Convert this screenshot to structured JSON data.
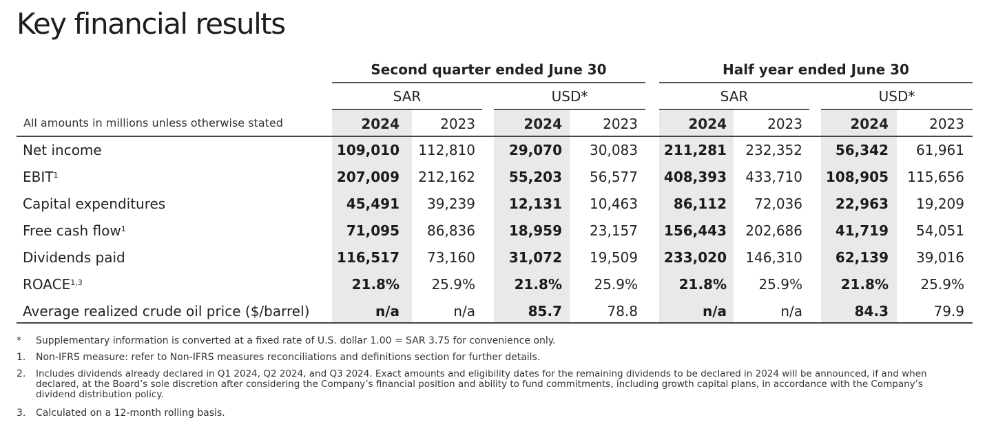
{
  "title": "Key financial results",
  "groups": [
    {
      "label": "Second quarter ended June 30"
    },
    {
      "label": "Half year ended June 30"
    }
  ],
  "currencies": [
    "SAR",
    "USD*",
    "SAR",
    "USD*"
  ],
  "years": [
    "2024",
    "2023",
    "2024",
    "2023",
    "2024",
    "2023",
    "2024",
    "2023"
  ],
  "note": "All amounts in millions unless otherwise stated",
  "rows": [
    {
      "label": "Net income",
      "sup": "",
      "values": [
        "109,010",
        "112,810",
        "29,070",
        "30,083",
        "211,281",
        "232,352",
        "56,342",
        "61,961"
      ]
    },
    {
      "label": "EBIT",
      "sup": "1",
      "values": [
        "207,009",
        "212,162",
        "55,203",
        "56,577",
        "408,393",
        "433,710",
        "108,905",
        "115,656"
      ]
    },
    {
      "label": "Capital expenditures",
      "sup": "",
      "values": [
        "45,491",
        "39,239",
        "12,131",
        "10,463",
        "86,112",
        "72,036",
        "22,963",
        "19,209"
      ]
    },
    {
      "label": "Free cash flow",
      "sup": "1",
      "values": [
        "71,095",
        "86,836",
        "18,959",
        "23,157",
        "156,443",
        "202,686",
        "41,719",
        "54,051"
      ]
    },
    {
      "label": "Dividends paid",
      "sup": "",
      "values": [
        "116,517",
        "73,160",
        "31,072",
        "19,509",
        "233,020",
        "146,310",
        "62,139",
        "39,016"
      ]
    },
    {
      "label": "ROACE",
      "sup": "1,3",
      "values": [
        "21.8%",
        "25.9%",
        "21.8%",
        "25.9%",
        "21.8%",
        "25.9%",
        "21.8%",
        "25.9%"
      ]
    },
    {
      "label": "Average realized crude oil price ($/barrel)",
      "sup": "",
      "values": [
        "n/a",
        "n/a",
        "85.7",
        "78.8",
        "n/a",
        "n/a",
        "84.3",
        "79.9"
      ]
    }
  ],
  "footnotes": [
    {
      "mark": "*",
      "text": "Supplementary information is converted at a fixed rate of U.S. dollar 1.00 = SAR 3.75 for convenience only."
    },
    {
      "mark": "1.",
      "text": "Non-IFRS measure: refer to Non-IFRS measures reconciliations and definitions section for further details."
    },
    {
      "mark": "2.",
      "text": "Includes dividends already declared in Q1 2024, Q2 2024, and Q3 2024. Exact amounts and eligibility dates for the remaining dividends to be declared in 2024 will be announced, if and when declared, at the Board’s sole discretion after considering the Company’s financial position and ability to fund commitments, including growth capital plans, in accordance with the Company’s dividend distribution policy."
    },
    {
      "mark": "3.",
      "text": "Calculated on a 12-month rolling basis."
    }
  ]
}
